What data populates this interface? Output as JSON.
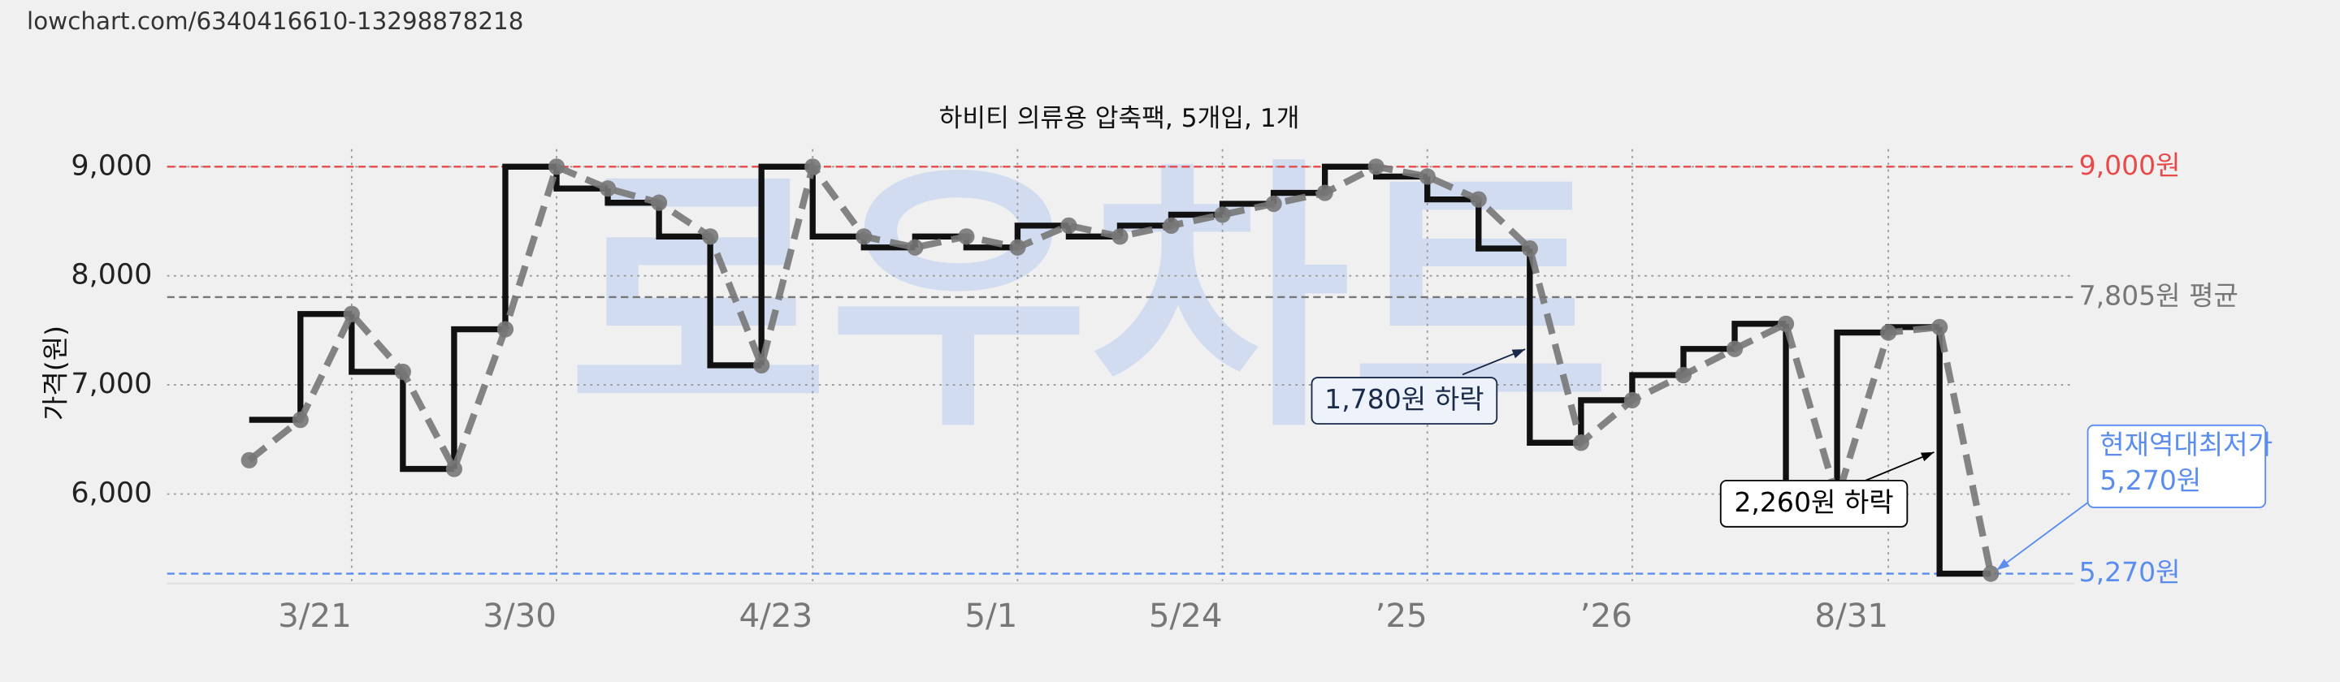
{
  "url": "lowchart.com/6340416610-13298878218",
  "chart_data": {
    "type": "line",
    "title": "하비티 의류용 압축팩, 5개입, 1개",
    "y_label": "가격(원)",
    "watermark": "로우차트",
    "categories": [
      null,
      null,
      "3/21",
      null,
      null,
      null,
      "3/30",
      null,
      null,
      null,
      null,
      "4/23",
      null,
      null,
      null,
      "5/1",
      null,
      null,
      null,
      "5/24",
      null,
      null,
      null,
      "’25",
      null,
      null,
      null,
      "’26",
      null,
      null,
      null,
      null,
      "8/31",
      null,
      null
    ],
    "series": [
      {
        "color": "#111111",
        "trend_color": "#777777",
        "values": [
          6310,
          6680,
          7650,
          7120,
          6230,
          7510,
          9000,
          8800,
          8670,
          8360,
          7180,
          9000,
          8360,
          8260,
          8360,
          8260,
          8460,
          8360,
          8460,
          8560,
          8660,
          8760,
          9000,
          8910,
          8700,
          8250,
          6470,
          6860,
          7090,
          7330,
          7560,
          5960,
          7480,
          7530,
          5270
        ]
      }
    ],
    "ylim": [
      5180,
      9160
    ],
    "yticks": [
      {
        "value": 6000,
        "label": "6,000"
      },
      {
        "value": 7000,
        "label": "7,000"
      },
      {
        "value": 8000,
        "label": "8,000"
      },
      {
        "value": 9000,
        "label": "9,000"
      }
    ],
    "grid": true,
    "reference_lines": [
      {
        "value": 9000,
        "label": "9,000원",
        "color": "#e84a4a"
      },
      {
        "value": 7805,
        "label": "7,805원 평균",
        "color": "#777777"
      },
      {
        "value": 5270,
        "label": "5,270원",
        "color": "#5b8def"
      }
    ],
    "annotations": [
      {
        "lines": [
          "1,780원 하락"
        ],
        "color": "#1a2a4a",
        "fill": "#eef2fa"
      },
      {
        "lines": [
          "2,260원 하락"
        ],
        "color": "#000000",
        "fill": "#ffffff"
      },
      {
        "lines": [
          "현재역대최저가",
          "5,270원"
        ],
        "color": "#5b8def",
        "fill": "#ffffff"
      }
    ]
  }
}
